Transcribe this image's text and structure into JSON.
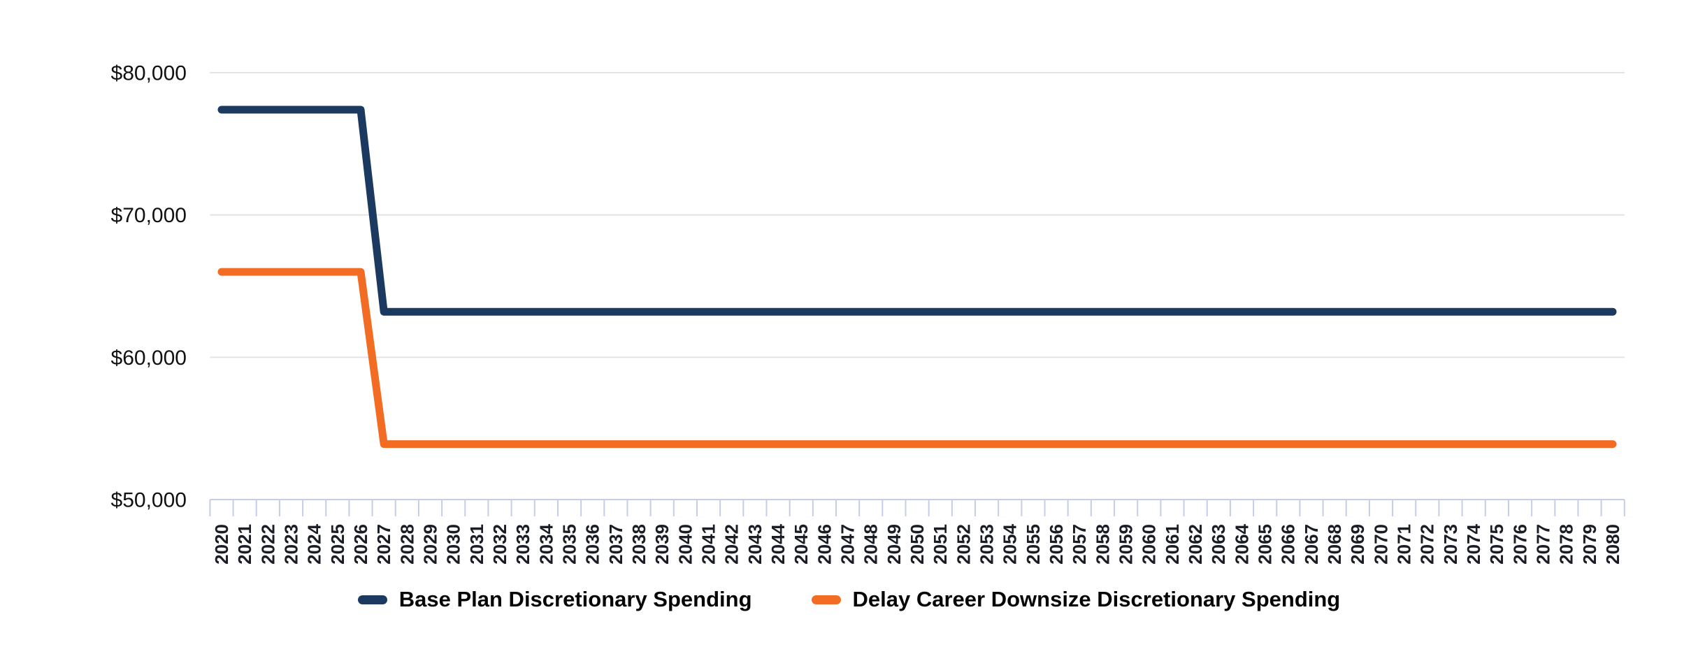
{
  "chart_data": {
    "type": "line",
    "title": "",
    "xlabel": "",
    "ylabel": "",
    "x": [
      2020,
      2021,
      2022,
      2023,
      2024,
      2025,
      2026,
      2027,
      2028,
      2029,
      2030,
      2031,
      2032,
      2033,
      2034,
      2035,
      2036,
      2037,
      2038,
      2039,
      2040,
      2041,
      2042,
      2043,
      2044,
      2045,
      2046,
      2047,
      2048,
      2049,
      2050,
      2051,
      2052,
      2053,
      2054,
      2055,
      2056,
      2057,
      2058,
      2059,
      2060,
      2061,
      2062,
      2063,
      2064,
      2065,
      2066,
      2067,
      2068,
      2069,
      2070,
      2071,
      2072,
      2073,
      2074,
      2075,
      2076,
      2077,
      2078,
      2079,
      2080
    ],
    "series": [
      {
        "name": "Base Plan Discretionary Spending",
        "color": "#1c3a5f",
        "values": [
          77400,
          77400,
          77400,
          77400,
          77400,
          77400,
          77400,
          63200,
          63200,
          63200,
          63200,
          63200,
          63200,
          63200,
          63200,
          63200,
          63200,
          63200,
          63200,
          63200,
          63200,
          63200,
          63200,
          63200,
          63200,
          63200,
          63200,
          63200,
          63200,
          63200,
          63200,
          63200,
          63200,
          63200,
          63200,
          63200,
          63200,
          63200,
          63200,
          63200,
          63200,
          63200,
          63200,
          63200,
          63200,
          63200,
          63200,
          63200,
          63200,
          63200,
          63200,
          63200,
          63200,
          63200,
          63200,
          63200,
          63200,
          63200,
          63200,
          63200,
          63200
        ]
      },
      {
        "name": "Delay Career Downsize Discretionary Spending",
        "color": "#f26c23",
        "values": [
          66000,
          66000,
          66000,
          66000,
          66000,
          66000,
          66000,
          53900,
          53900,
          53900,
          53900,
          53900,
          53900,
          53900,
          53900,
          53900,
          53900,
          53900,
          53900,
          53900,
          53900,
          53900,
          53900,
          53900,
          53900,
          53900,
          53900,
          53900,
          53900,
          53900,
          53900,
          53900,
          53900,
          53900,
          53900,
          53900,
          53900,
          53900,
          53900,
          53900,
          53900,
          53900,
          53900,
          53900,
          53900,
          53900,
          53900,
          53900,
          53900,
          53900,
          53900,
          53900,
          53900,
          53900,
          53900,
          53900,
          53900,
          53900,
          53900,
          53900,
          53900
        ]
      }
    ],
    "ylim": [
      50000,
      80000
    ],
    "yticks": [
      50000,
      60000,
      70000,
      80000
    ],
    "ytick_labels": [
      "$50,000",
      "$60,000",
      "$70,000",
      "$80,000"
    ],
    "grid": "horizontal",
    "gridline_color": "#e3e3e3",
    "axis_tick_color": "#c5cee9",
    "legend_position": "bottom"
  }
}
